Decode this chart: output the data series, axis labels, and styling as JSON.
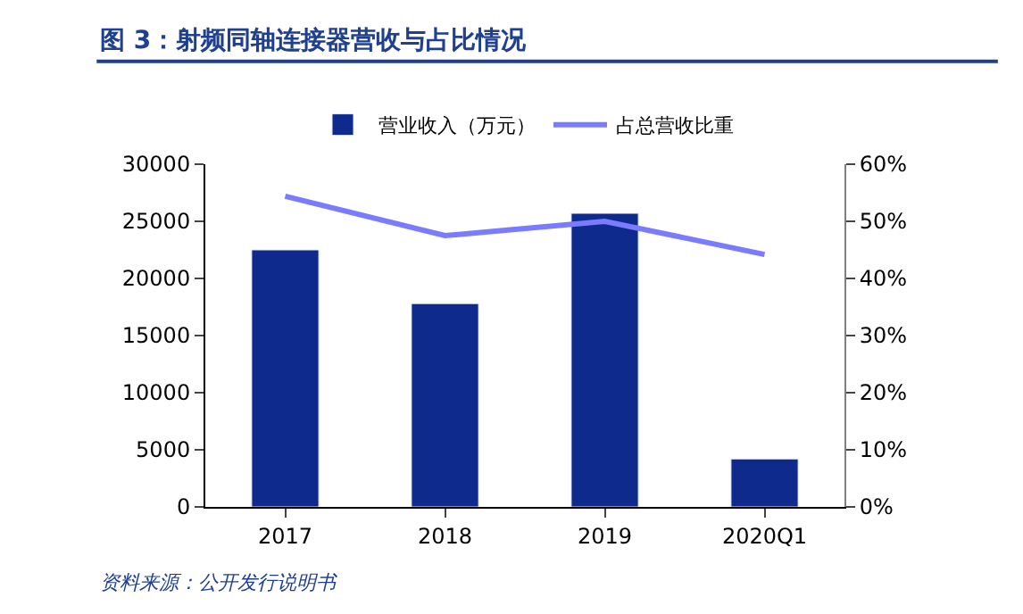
{
  "chart_data": {
    "type": "bar",
    "title": "图 3：射频同轴连接器营收与占比情况",
    "categories": [
      "2017",
      "2018",
      "2019",
      "2020Q1"
    ],
    "series": [
      {
        "name": "营业收入（万元）",
        "color": "#0d2a8c",
        "values": [
          22500,
          17800,
          25700,
          4200
        ]
      },
      {
        "name": "占总营收比重",
        "type": "line",
        "axis": "y2",
        "color": "#7b7bff",
        "values": [
          54.4,
          47.5,
          50.0,
          44.2
        ]
      }
    ],
    "ylim": [
      0,
      30000
    ],
    "yticks": [
      0,
      5000,
      10000,
      15000,
      20000,
      25000,
      30000
    ],
    "y2lim": [
      0,
      60
    ],
    "y2ticks": [
      {
        "value": 0,
        "label": "0%"
      },
      {
        "value": 10,
        "label": "10%"
      },
      {
        "value": 20,
        "label": "20%"
      },
      {
        "value": 30,
        "label": "30%"
      },
      {
        "value": 40,
        "label": "40%"
      },
      {
        "value": 50,
        "label": "50%"
      },
      {
        "value": 60,
        "label": "60%"
      }
    ],
    "legend": "top",
    "marker": "none",
    "annotations": [
      "资料来源：公开发行说明书"
    ]
  }
}
